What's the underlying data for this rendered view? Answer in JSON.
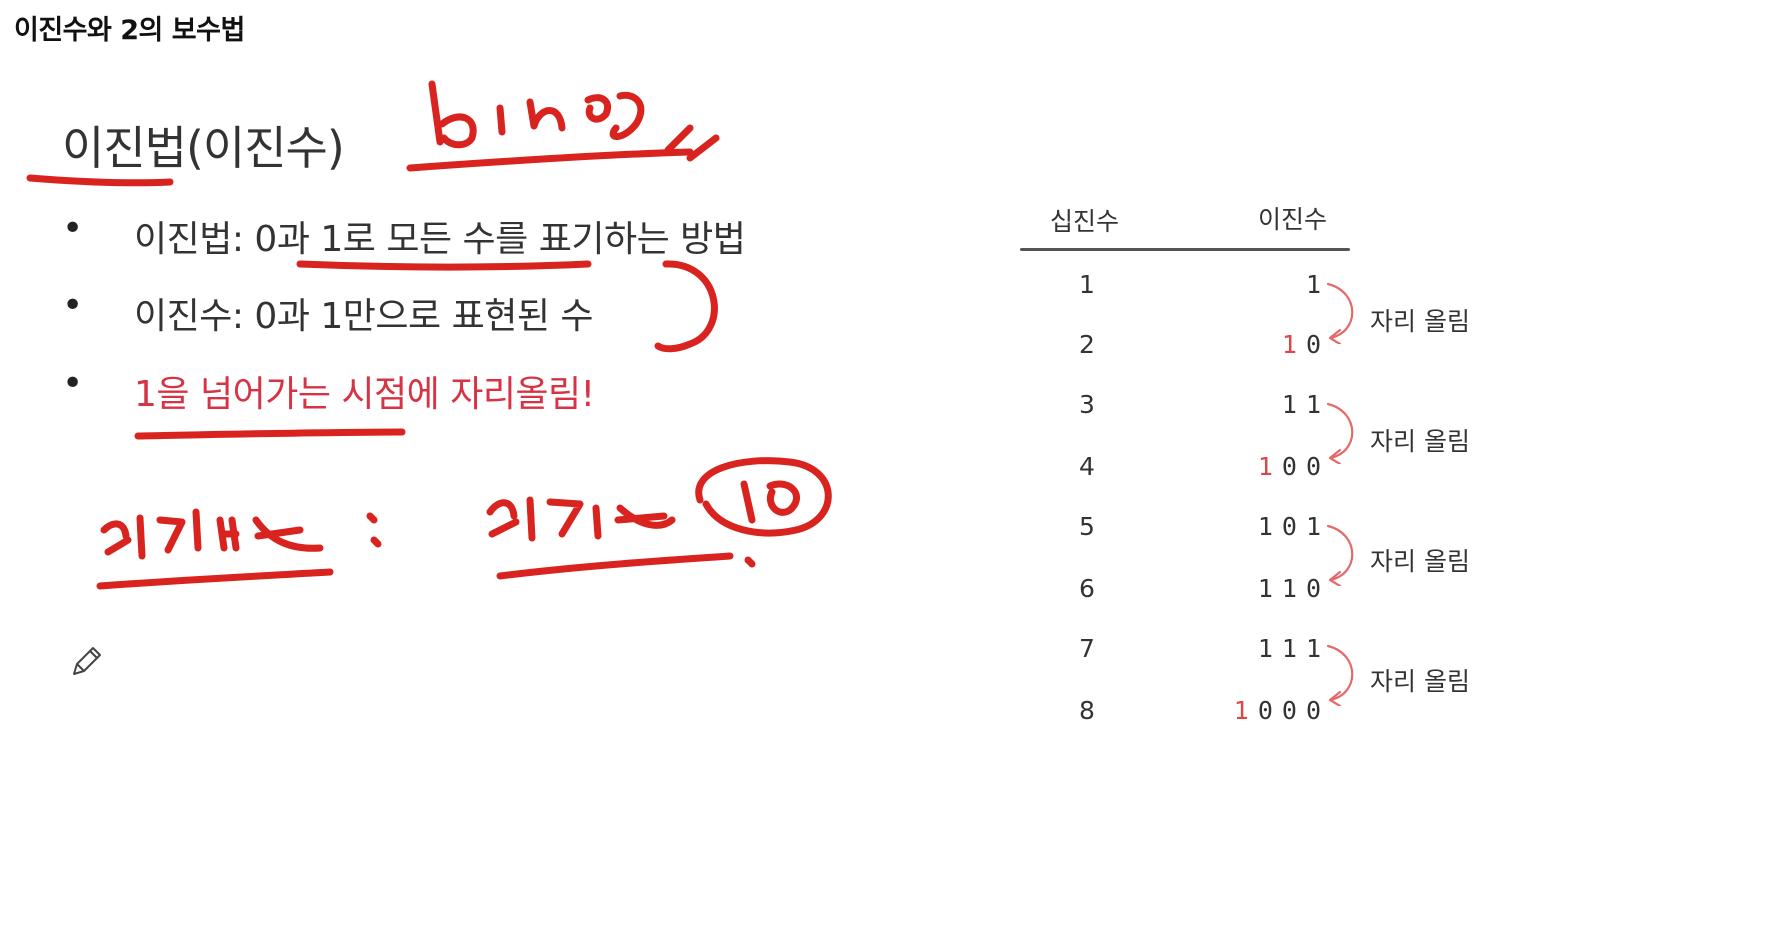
{
  "page": {
    "title": "이진수와 2의 보수법"
  },
  "slide": {
    "heading": "이진법(이진수)",
    "bullets": [
      {
        "text": "이진법: 0과 1로 모든 수를 표기하는 방법",
        "highlight": false
      },
      {
        "text": "이진수: 0과 1만으로 표현된 수",
        "highlight": false
      },
      {
        "text": "1을 넘어가는 시점에 자리올림!",
        "highlight": true
      }
    ],
    "bullet_glyph": "•",
    "accent_color": "#d63344",
    "ink_color": "#d9231f"
  },
  "table": {
    "headers": {
      "decimal": "십진수",
      "binary": "이진수"
    },
    "rows": [
      {
        "decimal": "1",
        "carry": "",
        "binary": "1"
      },
      {
        "decimal": "2",
        "carry": "1",
        "binary": "0"
      },
      {
        "decimal": "3",
        "carry": "",
        "binary": "11"
      },
      {
        "decimal": "4",
        "carry": "1",
        "binary": "00"
      },
      {
        "decimal": "5",
        "carry": "",
        "binary": "101"
      },
      {
        "decimal": "6",
        "carry": "",
        "binary": "110"
      },
      {
        "decimal": "7",
        "carry": "",
        "binary": "111"
      },
      {
        "decimal": "8",
        "carry": "1",
        "binary": "000"
      }
    ],
    "carry_labels": [
      "자리 올림",
      "자리 올림",
      "자리 올림",
      "자리 올림"
    ]
  },
  "icons": {
    "annotation_tool": "pencil-icon"
  }
}
